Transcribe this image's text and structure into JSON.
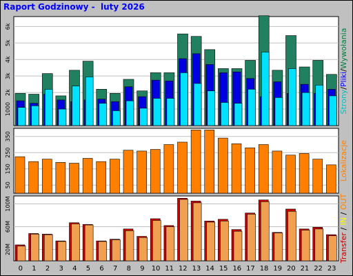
{
  "title": "Raport Godzinowy -  luty 2026",
  "colors": {
    "background": "#c0c0c0",
    "panel": "#ffffff",
    "grid": "#c0c0c0",
    "title": "#0000ff",
    "strony": "#00c0c0",
    "pliki": "#0000ff",
    "wywolania": "#008040",
    "lokalizacje": "#ff8000",
    "transfer": "#c00000",
    "in": "#ffff00",
    "out": "#ff8000",
    "lokalizacje_bar": "#ff8000",
    "transfer_in_bar": "#d00000",
    "transfer_out_bar": "#f0a050",
    "wywolania_bar": "#208060",
    "pliki_bar": "#0000e0",
    "strony_bar": "#00e0ff"
  },
  "legend": {
    "panel1": [
      {
        "text": "Strony",
        "color": "#00c0c0"
      },
      {
        "text": "/",
        "color": "#000000"
      },
      {
        "text": "Pliki",
        "color": "#0000ff"
      },
      {
        "text": "/",
        "color": "#000000"
      },
      {
        "text": "Wywołania",
        "color": "#008040"
      }
    ],
    "panel2": [
      {
        "text": "Lokalizacje",
        "color": "#ff8000"
      }
    ],
    "panel3": [
      {
        "text": "Transfer",
        "color": "#c00000"
      },
      {
        "text": " / ",
        "color": "#000000"
      },
      {
        "text": "IN",
        "color": "#ffff00"
      },
      {
        "text": " / ",
        "color": "#000000"
      },
      {
        "text": "OUT",
        "color": "#ff8000"
      }
    ]
  },
  "chart_data": [
    {
      "type": "bar",
      "panel": "requests",
      "categories": [
        "0",
        "1",
        "2",
        "3",
        "4",
        "5",
        "6",
        "7",
        "8",
        "9",
        "10",
        "11",
        "12",
        "13",
        "14",
        "15",
        "16",
        "17",
        "18",
        "19",
        "20",
        "21",
        "22",
        "23"
      ],
      "ylim": [
        0,
        6600
      ],
      "y_ticks": [
        {
          "value": 1000,
          "label": "1000"
        },
        {
          "value": 2000,
          "label": "2k"
        },
        {
          "value": 3000,
          "label": "3k"
        },
        {
          "value": 4000,
          "label": "4k"
        },
        {
          "value": 5000,
          "label": "5k"
        },
        {
          "value": 6000,
          "label": "6k"
        }
      ],
      "series": [
        {
          "name": "Wywołania",
          "values": [
            1950,
            1900,
            3150,
            1800,
            3350,
            3900,
            2200,
            1950,
            2800,
            2100,
            3200,
            3200,
            5550,
            5400,
            4600,
            3450,
            3450,
            3950,
            6650,
            3350,
            5450,
            3550,
            3950,
            3100
          ]
        },
        {
          "name": "Pliki",
          "values": [
            1500,
            1350,
            1900,
            1550,
            1450,
            1550,
            1600,
            1450,
            2350,
            1750,
            2750,
            2700,
            4050,
            4350,
            3700,
            3200,
            3250,
            2850,
            1750,
            2650,
            1950,
            2500,
            1950,
            2200
          ]
        },
        {
          "name": "Strony",
          "values": [
            1100,
            1200,
            2200,
            1000,
            2400,
            2950,
            1350,
            900,
            1500,
            1050,
            1650,
            1650,
            3200,
            2550,
            2100,
            1400,
            1350,
            2200,
            4450,
            1700,
            3450,
            2000,
            2450,
            1800
          ]
        }
      ]
    },
    {
      "type": "bar",
      "panel": "locations",
      "categories": [
        "0",
        "1",
        "2",
        "3",
        "4",
        "5",
        "6",
        "7",
        "8",
        "9",
        "10",
        "11",
        "12",
        "13",
        "14",
        "15",
        "16",
        "17",
        "18",
        "19",
        "20",
        "21",
        "22",
        "23"
      ],
      "ylim": [
        0,
        400
      ],
      "y_ticks": [
        {
          "value": 50,
          "label": "50"
        },
        {
          "value": 150,
          "label": "150"
        },
        {
          "value": 250,
          "label": "250"
        },
        {
          "value": 350,
          "label": "350"
        }
      ],
      "series": [
        {
          "name": "Lokalizacje",
          "values": [
            225,
            195,
            210,
            190,
            185,
            215,
            195,
            210,
            265,
            260,
            270,
            300,
            315,
            390,
            390,
            340,
            305,
            280,
            300,
            260,
            235,
            245,
            210,
            175
          ]
        }
      ]
    },
    {
      "type": "bar",
      "panel": "transfer",
      "categories": [
        "0",
        "1",
        "2",
        "3",
        "4",
        "5",
        "6",
        "7",
        "8",
        "9",
        "10",
        "11",
        "12",
        "13",
        "14",
        "15",
        "16",
        "17",
        "18",
        "19",
        "20",
        "21",
        "22",
        "23"
      ],
      "ylim": [
        0,
        114
      ],
      "y_ticks": [
        {
          "value": 20,
          "label": "20M"
        },
        {
          "value": 60,
          "label": "60M"
        },
        {
          "value": 100,
          "label": "100M"
        }
      ],
      "series": [
        {
          "name": "IN",
          "values": [
            28,
            48,
            47,
            35,
            67,
            64,
            35,
            38,
            56,
            43,
            74,
            62,
            110,
            105,
            70,
            73,
            55,
            84,
            107,
            50,
            91,
            56,
            59,
            46
          ]
        },
        {
          "name": "OUT",
          "values": [
            26,
            47,
            46,
            34,
            65,
            63,
            34,
            37,
            53,
            41,
            71,
            60,
            108,
            102,
            68,
            70,
            52,
            82,
            104,
            49,
            87,
            54,
            56,
            44
          ]
        }
      ]
    }
  ]
}
